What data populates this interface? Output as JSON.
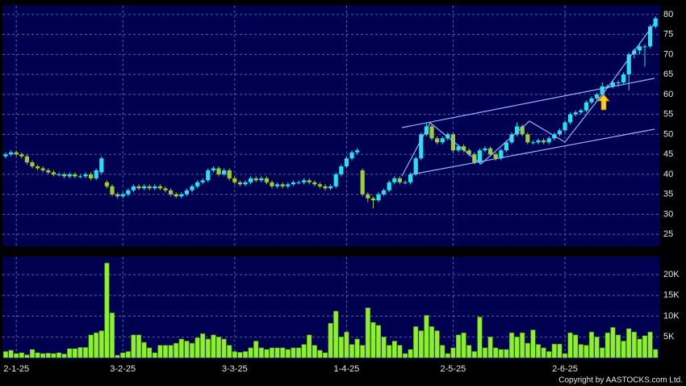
{
  "chart_data": [
    {
      "type": "candlestick",
      "up_color": "#22e3f2",
      "down_color": "#9ccf2e",
      "ylim": [
        22,
        82.2
      ],
      "yticks": [
        25,
        30,
        35,
        40,
        45,
        50,
        55,
        60,
        65,
        70,
        75,
        80
      ],
      "grid": true,
      "open": [
        44.5,
        45,
        45.5,
        45,
        44.5,
        43,
        42,
        41.5,
        41,
        40.5,
        40,
        40,
        39.5,
        40,
        39.5,
        39.5,
        40,
        39,
        40.5,
        38,
        37,
        35,
        34.5,
        35,
        36,
        37,
        36.5,
        37,
        36.5,
        37,
        36.5,
        36,
        35,
        34.5,
        35,
        36,
        37,
        38,
        38.5,
        41,
        41.5,
        40,
        41,
        39,
        38,
        37.5,
        38,
        39,
        38.5,
        39,
        38,
        37,
        37.5,
        37,
        37.5,
        38,
        38,
        38.5,
        38,
        37.5,
        37,
        36.5,
        37,
        40,
        42,
        44,
        45.5,
        41,
        35,
        34,
        33.5,
        35,
        36,
        38,
        39,
        38,
        38,
        40,
        44,
        50,
        52,
        49,
        48,
        49,
        50,
        46,
        47,
        46,
        45,
        43,
        46,
        46.5,
        45,
        44,
        46,
        48,
        50,
        52,
        50,
        48,
        48,
        48.5,
        48,
        49,
        50,
        51,
        53,
        55,
        55.5,
        56,
        58,
        59,
        60,
        62,
        62,
        63,
        63,
        65,
        70,
        71,
        72,
        72,
        77
      ],
      "high": [
        45.5,
        46,
        46,
        45.5,
        45,
        43.5,
        42.5,
        42,
        41.5,
        41,
        40.5,
        40.5,
        40.5,
        40.5,
        40,
        40.5,
        40.5,
        41.5,
        44.5,
        38.5,
        37.5,
        35.5,
        35.5,
        36.5,
        37.5,
        37.5,
        37.5,
        37.5,
        37.5,
        37.5,
        37,
        36.5,
        35.5,
        35.5,
        36.5,
        37.5,
        38.5,
        39,
        41.5,
        42,
        42,
        41.5,
        41.5,
        39.5,
        38.5,
        38.5,
        39.5,
        39.5,
        39.5,
        39.5,
        38.5,
        38,
        38,
        38,
        38.5,
        38.5,
        39,
        39,
        38.5,
        38,
        37.5,
        37.5,
        40.5,
        42.5,
        44.5,
        46,
        46.5,
        41.5,
        35.5,
        34.5,
        35.5,
        36.5,
        38.5,
        39.5,
        39.5,
        38.5,
        40.5,
        44.5,
        50.5,
        53,
        52.5,
        49.5,
        49.5,
        50.5,
        50.5,
        47.5,
        47.5,
        46.5,
        45.5,
        46.5,
        47,
        47,
        45.5,
        46.5,
        48.5,
        50.5,
        53,
        52.5,
        50.5,
        48.5,
        49,
        49,
        49.5,
        50.5,
        51.5,
        53.5,
        55.5,
        56,
        56.5,
        58.5,
        59.5,
        60.5,
        63,
        62.5,
        63.5,
        63.5,
        65.5,
        70.5,
        71.5,
        72.5,
        72.5,
        77.5,
        79.5
      ],
      "low": [
        44,
        44.5,
        44.5,
        44,
        42.5,
        41.5,
        41,
        40.5,
        40,
        39.5,
        39.5,
        39,
        39,
        39,
        39,
        39,
        38.5,
        38.5,
        40,
        36.5,
        34.5,
        34,
        34,
        34.5,
        35.5,
        36,
        36,
        36,
        36,
        36,
        35.5,
        34.5,
        34,
        34,
        34.5,
        35.5,
        36.5,
        37.5,
        38,
        40.5,
        39.5,
        39.5,
        38.5,
        37.5,
        37,
        37,
        37.5,
        38,
        38,
        37.5,
        36.5,
        36.5,
        36.5,
        36.5,
        37,
        37.5,
        37.5,
        37.5,
        37,
        36.5,
        36,
        36,
        36.5,
        39.5,
        41.5,
        43.5,
        45,
        34.5,
        33,
        31.5,
        33,
        34.5,
        35.5,
        37.5,
        37.5,
        37.5,
        37.5,
        39.5,
        43.5,
        49.5,
        48.5,
        47.5,
        47.5,
        48.5,
        45.5,
        45.5,
        45.5,
        44.5,
        42.5,
        42.5,
        45.5,
        44.5,
        43.5,
        43.5,
        45.5,
        47.5,
        49.5,
        49.5,
        47.5,
        47.5,
        47.5,
        47.5,
        47.5,
        48.5,
        49.5,
        50.5,
        52.5,
        54.5,
        55,
        55.5,
        57.5,
        58.5,
        59.5,
        61.5,
        61.5,
        62,
        62.5,
        61,
        69,
        70,
        67,
        71.5,
        76.5
      ],
      "close": [
        45,
        45.5,
        45,
        44.5,
        43,
        42,
        41.5,
        41,
        40.5,
        40,
        40,
        39.5,
        40,
        39.5,
        39.5,
        40,
        39,
        41,
        44,
        37,
        35,
        34.5,
        35,
        36,
        37,
        36.5,
        37,
        36.5,
        37,
        36.5,
        36,
        35,
        34.5,
        35,
        36,
        37,
        38,
        38.5,
        41,
        41.5,
        40,
        41,
        39,
        38,
        37.5,
        38,
        39,
        38.5,
        39,
        38,
        37,
        37.5,
        37,
        37.5,
        38,
        38,
        38.5,
        38,
        37.5,
        37,
        36.5,
        37,
        40,
        42,
        44,
        45.5,
        46,
        35,
        34,
        33.5,
        35,
        36,
        38,
        39,
        38,
        38,
        40,
        44,
        50,
        52,
        49,
        48,
        49,
        50,
        46,
        47,
        46,
        45,
        43,
        46,
        46.5,
        45,
        44,
        46,
        48,
        50,
        52,
        50,
        48,
        48,
        48.5,
        48,
        49,
        50,
        51,
        53,
        55,
        55.5,
        56,
        58,
        59,
        60,
        62,
        62,
        63,
        63,
        65,
        70,
        71,
        72,
        72,
        77,
        79
      ]
    },
    {
      "type": "bar",
      "color": "#8ef02c",
      "ylim": [
        0,
        24300
      ],
      "yticks": [
        {
          "value": 5000,
          "label": "5K"
        },
        {
          "value": 10000,
          "label": "10K"
        },
        {
          "value": 15000,
          "label": "15K"
        },
        {
          "value": 20000,
          "label": "20K"
        }
      ],
      "grid": true,
      "categories": [
        null,
        null,
        "2-1-25",
        null,
        null,
        null,
        null,
        null,
        null,
        null,
        null,
        null,
        null,
        null,
        null,
        null,
        null,
        null,
        null,
        null,
        null,
        null,
        "3-2-25",
        null,
        null,
        null,
        null,
        null,
        null,
        null,
        null,
        null,
        null,
        null,
        null,
        null,
        null,
        null,
        null,
        null,
        null,
        null,
        null,
        "3-3-25",
        null,
        null,
        null,
        null,
        null,
        null,
        null,
        null,
        null,
        null,
        null,
        null,
        null,
        null,
        null,
        null,
        null,
        null,
        null,
        null,
        "1-4-25",
        null,
        null,
        null,
        null,
        null,
        null,
        null,
        null,
        null,
        null,
        null,
        null,
        null,
        null,
        null,
        null,
        null,
        null,
        null,
        "2-5-25",
        null,
        null,
        null,
        null,
        null,
        null,
        null,
        null,
        null,
        null,
        null,
        null,
        null,
        null,
        null,
        null,
        null,
        null,
        null,
        null,
        "2-6-25",
        null,
        null,
        null,
        null,
        null,
        null,
        null,
        null,
        null,
        null,
        null,
        null,
        null,
        null,
        null,
        null,
        null
      ],
      "values": [
        1500,
        1800,
        1000,
        1200,
        700,
        2000,
        1200,
        1000,
        1100,
        1000,
        1200,
        900,
        2200,
        2200,
        2500,
        2500,
        5500,
        6000,
        6500,
        22800,
        10800,
        600,
        1200,
        1500,
        5500,
        5500,
        3700,
        2400,
        1200,
        3000,
        3000,
        3000,
        3500,
        4500,
        4000,
        3500,
        4800,
        5800,
        4500,
        5500,
        5000,
        4500,
        3000,
        1500,
        1300,
        1500,
        2400,
        4000,
        2400,
        2000,
        2400,
        2400,
        2400,
        2000,
        2400,
        2400,
        3200,
        5500,
        3000,
        1800,
        1200,
        8300,
        11200,
        5000,
        6200,
        3200,
        4500,
        3000,
        12000,
        8500,
        7800,
        5000,
        3000,
        4000,
        3000,
        1000,
        2000,
        7500,
        6500,
        10200,
        7500,
        6500,
        3000,
        1000,
        2400,
        5500,
        6000,
        3000,
        1500,
        9800,
        2400,
        5000,
        2400,
        2000,
        2000,
        6000,
        5000,
        6000,
        3500,
        6700,
        3200,
        2400,
        1500,
        3300,
        3300,
        1000,
        6000,
        5500,
        3200,
        3000,
        6200,
        5000,
        2400,
        6000,
        7300,
        5500,
        4000,
        7000,
        6200,
        4500,
        5300,
        6200,
        2000
      ]
    }
  ],
  "copyright": "Copyright by AASTOCKS.com Ltd."
}
